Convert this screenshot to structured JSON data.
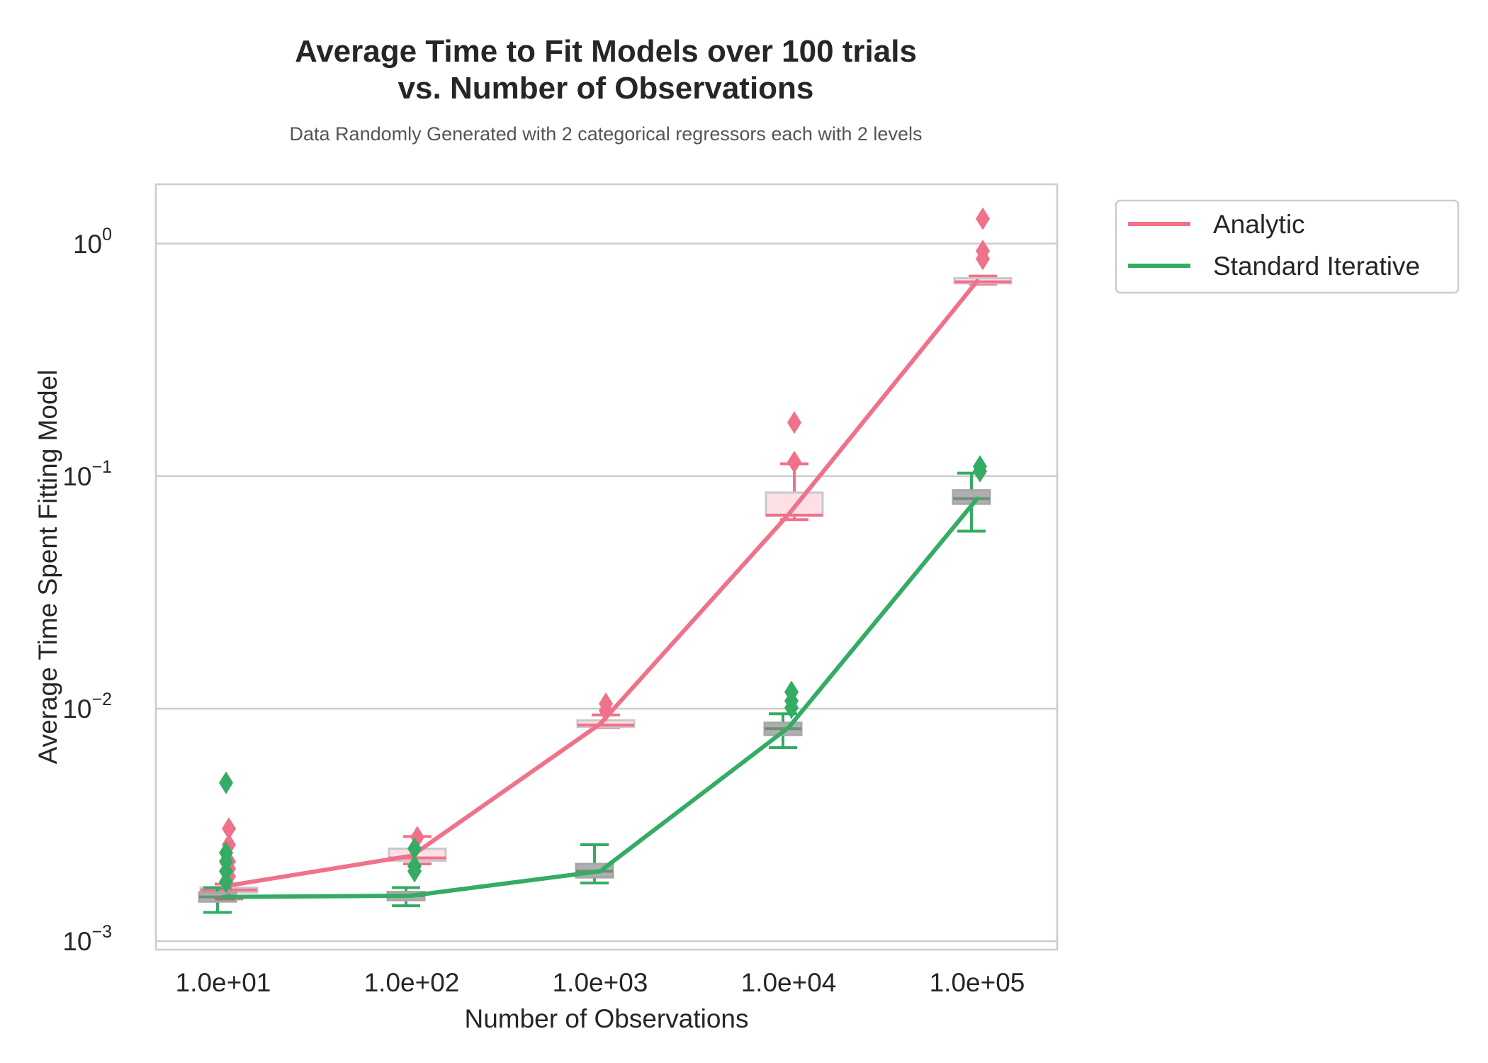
{
  "chart_data": {
    "type": "line",
    "title_line1": "Average Time to Fit Models over 100 trials",
    "title_line2": "vs. Number of Observations",
    "subtitle": "Data Randomly Generated with 2 categorical regressors each with 2 levels",
    "xlabel": "Number of Observations",
    "ylabel": "Average Time Spent Fitting Model",
    "x_scale": "categorical",
    "y_scale": "log",
    "ylim": [
      0.00092,
      1.8
    ],
    "categories": [
      "1.0e+01",
      "1.0e+02",
      "1.0e+03",
      "1.0e+04",
      "1.0e+05"
    ],
    "x": [
      10,
      100,
      1000,
      10000,
      100000
    ],
    "y_ticks": [
      {
        "value": 0.001,
        "base": "10",
        "exp": "−3"
      },
      {
        "value": 0.01,
        "base": "10",
        "exp": "−2"
      },
      {
        "value": 0.1,
        "base": "10",
        "exp": "−1"
      },
      {
        "value": 1,
        "base": "10",
        "exp": "0"
      }
    ],
    "grid": "y-major",
    "legend_position": "outside upper-right",
    "series": [
      {
        "name": "Analytic",
        "color": "#f0718a",
        "values": [
          0.00172,
          0.00233,
          0.0086,
          0.0685,
          0.69
        ],
        "boxes": [
          {
            "whisker_low": 0.00152,
            "q1": 0.00162,
            "median": 0.00166,
            "q3": 0.0017,
            "whisker_high": 0.00176
          },
          {
            "whisker_low": 0.00215,
            "q1": 0.00222,
            "median": 0.00228,
            "q3": 0.0025,
            "whisker_high": 0.00282
          },
          {
            "whisker_low": 0.0083,
            "q1": 0.00835,
            "median": 0.0085,
            "q3": 0.0089,
            "whisker_high": 0.0094
          },
          {
            "whisker_low": 0.065,
            "q1": 0.0675,
            "median": 0.068,
            "q3": 0.085,
            "whisker_high": 0.113
          },
          {
            "whisker_low": 0.67,
            "q1": 0.675,
            "median": 0.685,
            "q3": 0.71,
            "whisker_high": 0.725
          }
        ],
        "outliers": [
          [
            0.00305,
            0.0026,
            0.0022,
            0.00205,
            0.0019
          ],
          [
            0.0028
          ],
          [
            0.0105,
            0.0098
          ],
          [
            0.17,
            0.115
          ],
          [
            1.28,
            0.93,
            0.86
          ]
        ]
      },
      {
        "name": "Standard Iterative",
        "color": "#34ac63",
        "values": [
          0.00155,
          0.00157,
          0.002,
          0.0083,
          0.08
        ],
        "boxes": [
          {
            "whisker_low": 0.00133,
            "q1": 0.00148,
            "median": 0.00155,
            "q3": 0.00162,
            "whisker_high": 0.0017
          },
          {
            "whisker_low": 0.00142,
            "q1": 0.0015,
            "median": 0.00157,
            "q3": 0.00163,
            "whisker_high": 0.0017
          },
          {
            "whisker_low": 0.00178,
            "q1": 0.00188,
            "median": 0.002,
            "q3": 0.00215,
            "whisker_high": 0.0026
          },
          {
            "whisker_low": 0.0068,
            "q1": 0.0077,
            "median": 0.0082,
            "q3": 0.0087,
            "whisker_high": 0.0095
          },
          {
            "whisker_low": 0.058,
            "q1": 0.076,
            "median": 0.08,
            "q3": 0.087,
            "whisker_high": 0.103
          }
        ],
        "outliers": [
          [
            0.0048,
            0.0024,
            0.0022,
            0.002,
            0.0018
          ],
          [
            0.0025,
            0.0021,
            0.002
          ],
          [],
          [
            0.0118,
            0.0108,
            0.0101
          ],
          [
            0.11,
            0.105
          ]
        ]
      }
    ]
  }
}
